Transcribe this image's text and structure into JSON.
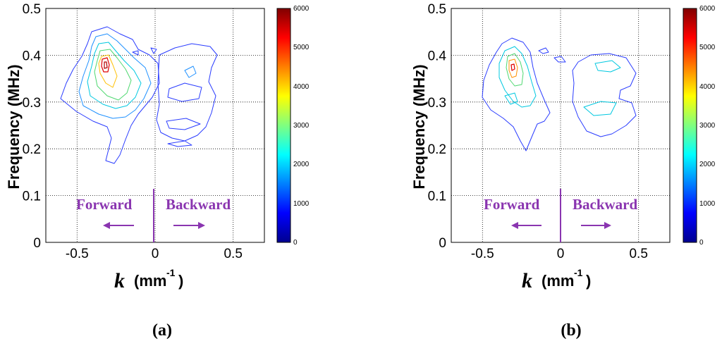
{
  "chart_data": [
    {
      "type": "contour",
      "panel_label": "(a)",
      "ylabel": "Frequency (MHz)",
      "xlabel_symbol": "k",
      "xlabel_unit_open": "(mm",
      "xlabel_unit_sup": "-1",
      "xlabel_unit_close": ")",
      "xlim": [
        -0.7,
        0.7
      ],
      "ylim": [
        0,
        0.5
      ],
      "xticks": [
        "-0.5",
        "0",
        "0.5"
      ],
      "xtick_values": [
        -0.5,
        0,
        0.5
      ],
      "yticks": [
        "0",
        "0.1",
        "0.2",
        "0.3",
        "0.4",
        "0.5"
      ],
      "ytick_values": [
        0,
        0.1,
        0.2,
        0.3,
        0.4,
        0.5
      ],
      "grid": true,
      "annotations": {
        "forward": "Forward",
        "backward": "Backward",
        "color": "#8a35b0"
      },
      "colorbar": {
        "min": 0,
        "max": 6000,
        "ticks": [
          "0",
          "1000",
          "2000",
          "3000",
          "4000",
          "5000",
          "6000"
        ],
        "tick_values": [
          0,
          1000,
          2000,
          3000,
          4000,
          5000,
          6000
        ],
        "colormap": "jet"
      },
      "contours": [
        {
          "level": 800,
          "peak": [
            -0.31,
            0.37
          ]
        },
        {
          "level": 2000,
          "peak": [
            -0.27,
            0.34
          ]
        },
        {
          "level": 4000,
          "peak": [
            -0.31,
            0.38
          ]
        },
        {
          "level": 5800,
          "peak": [
            -0.32,
            0.38
          ]
        }
      ]
    },
    {
      "type": "contour",
      "panel_label": "(b)",
      "ylabel": "Frequency (MHz)",
      "xlabel_symbol": "k",
      "xlabel_unit_open": "(mm",
      "xlabel_unit_sup": "-1",
      "xlabel_unit_close": ")",
      "xlim": [
        -0.7,
        0.7
      ],
      "ylim": [
        0,
        0.5
      ],
      "xticks": [
        "-0.5",
        "0",
        "0.5"
      ],
      "xtick_values": [
        -0.5,
        0,
        0.5
      ],
      "yticks": [
        "0",
        "0.1",
        "0.2",
        "0.3",
        "0.4",
        "0.5"
      ],
      "ytick_values": [
        0,
        0.1,
        0.2,
        0.3,
        0.4,
        0.5
      ],
      "grid": true,
      "annotations": {
        "forward": "Forward",
        "backward": "Backward",
        "color": "#8a35b0"
      },
      "colorbar": {
        "min": 0,
        "max": 6000,
        "ticks": [
          "0",
          "1000",
          "2000",
          "3000",
          "4000",
          "5000",
          "6000"
        ],
        "tick_values": [
          0,
          1000,
          2000,
          3000,
          4000,
          5000,
          6000
        ],
        "colormap": "jet"
      },
      "contours": [
        {
          "level": 800,
          "peak": [
            -0.32,
            0.37
          ]
        },
        {
          "level": 2000,
          "peak": [
            -0.3,
            0.36
          ]
        },
        {
          "level": 3500,
          "peak": [
            -0.32,
            0.37
          ]
        },
        {
          "level": 4800,
          "peak": [
            -0.32,
            0.37
          ]
        }
      ]
    }
  ]
}
